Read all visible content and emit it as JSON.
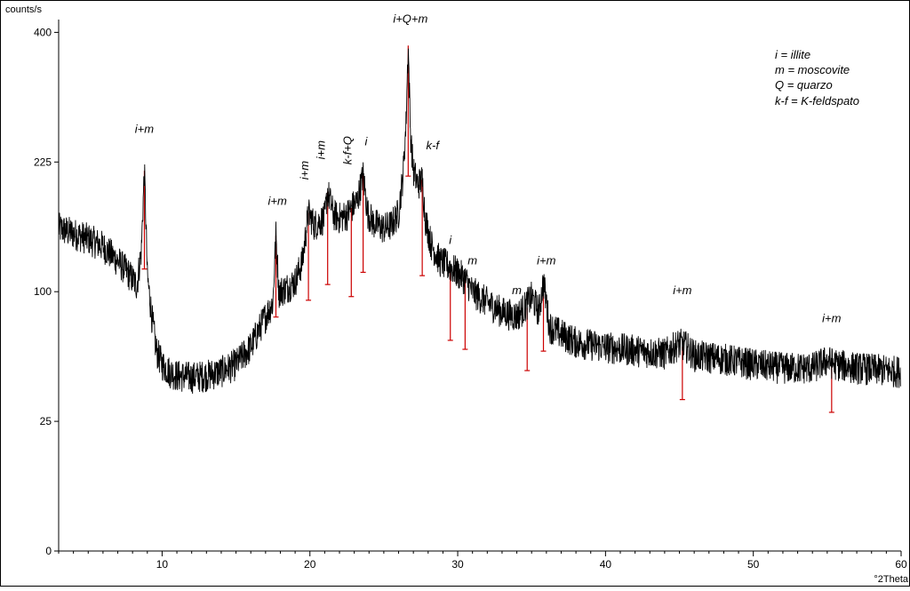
{
  "chart_data": {
    "type": "line",
    "title": "",
    "ylabel": "counts/s",
    "xlabel": "°2Theta",
    "xlim": [
      3,
      60
    ],
    "x_ticks": [
      10,
      20,
      30,
      40,
      50,
      60
    ],
    "y_ticks": [
      0,
      25,
      100,
      225,
      400
    ],
    "y_scale": "sqrt",
    "ylim": [
      0,
      420
    ],
    "grid": false,
    "legend_position": "top-right",
    "legend": [
      "i = illite",
      "m = moscovite",
      "Q = quarzo",
      "k-f = K-feldspato"
    ],
    "series": [
      {
        "color": "#000000",
        "x": [
          3,
          4,
          5,
          6,
          7,
          7.5,
          8,
          8.3,
          8.6,
          8.8,
          9.0,
          9.3,
          9.6,
          10,
          10.5,
          11,
          12,
          13,
          14,
          15,
          16,
          17,
          17.5,
          17.7,
          17.9,
          18.3,
          19,
          19.5,
          19.9,
          20.3,
          21,
          21.2,
          21.6,
          22,
          22.5,
          22.8,
          23.2,
          23.6,
          23.9,
          24.3,
          25,
          25.5,
          26,
          26.3,
          26.5,
          26.65,
          26.8,
          27,
          27.3,
          27.6,
          27.8,
          28.2,
          28.8,
          29.5,
          30,
          30.5,
          31,
          31.5,
          32,
          33,
          34,
          34.5,
          35,
          35.5,
          35.8,
          36.2,
          37,
          38,
          40,
          42,
          44,
          45,
          45.5,
          46,
          48,
          50,
          52,
          54,
          55,
          55.5,
          57,
          60
        ],
        "y": [
          155,
          150,
          145,
          138,
          125,
          118,
          110,
          105,
          135,
          215,
          112,
          82,
          60,
          52,
          48,
          46,
          45,
          46,
          48,
          52,
          62,
          82,
          92,
          148,
          100,
          102,
          108,
          125,
          170,
          158,
          165,
          192,
          168,
          165,
          168,
          175,
          182,
          210,
          170,
          160,
          155,
          158,
          170,
          210,
          270,
          380,
          260,
          215,
          200,
          205,
          165,
          140,
          125,
          120,
          115,
          110,
          100,
          96,
          92,
          85,
          82,
          88,
          96,
          85,
          108,
          75,
          70,
          65,
          62,
          60,
          58,
          64,
          62,
          57,
          55,
          52,
          50,
          50,
          54,
          52,
          50,
          48
        ]
      }
    ],
    "reference_peaks": [
      {
        "x": 8.8,
        "y": 215
      },
      {
        "x": 17.7,
        "y": 148
      },
      {
        "x": 19.9,
        "y": 170
      },
      {
        "x": 21.2,
        "y": 192
      },
      {
        "x": 22.8,
        "y": 175
      },
      {
        "x": 23.6,
        "y": 210
      },
      {
        "x": 26.65,
        "y": 380
      },
      {
        "x": 27.6,
        "y": 205
      },
      {
        "x": 29.5,
        "y": 120
      },
      {
        "x": 30.5,
        "y": 110
      },
      {
        "x": 34.7,
        "y": 88
      },
      {
        "x": 35.8,
        "y": 108
      },
      {
        "x": 45.2,
        "y": 62
      },
      {
        "x": 55.3,
        "y": 52
      }
    ],
    "annotations": [
      {
        "text": "i+m",
        "x": 8.8,
        "y": 260,
        "rotate": 0
      },
      {
        "text": "i+m",
        "x": 17.8,
        "y": 178,
        "rotate": 0
      },
      {
        "text": "i+m",
        "x": 19.9,
        "y": 205,
        "rotate": -90
      },
      {
        "text": "i+m",
        "x": 21.0,
        "y": 228,
        "rotate": -90
      },
      {
        "text": "k-f+Q",
        "x": 22.8,
        "y": 222,
        "rotate": -90
      },
      {
        "text": "i",
        "x": 23.8,
        "y": 245,
        "rotate": 0
      },
      {
        "text": "i+Q+m",
        "x": 26.8,
        "y": 415,
        "rotate": 0
      },
      {
        "text": "k-f",
        "x": 28.3,
        "y": 240,
        "rotate": 0
      },
      {
        "text": "i",
        "x": 29.5,
        "y": 140,
        "rotate": 0
      },
      {
        "text": "m",
        "x": 31.0,
        "y": 122,
        "rotate": 0
      },
      {
        "text": "m",
        "x": 34.0,
        "y": 98,
        "rotate": 0
      },
      {
        "text": "i+m",
        "x": 36.0,
        "y": 122,
        "rotate": 0
      },
      {
        "text": "i+m",
        "x": 45.2,
        "y": 98,
        "rotate": 0
      },
      {
        "text": "i+m",
        "x": 55.3,
        "y": 78,
        "rotate": 0
      }
    ]
  },
  "colors": {
    "trace": "#000000",
    "reference_sticks": "#cc0000",
    "axes": "#000000",
    "background": "#ffffff"
  }
}
